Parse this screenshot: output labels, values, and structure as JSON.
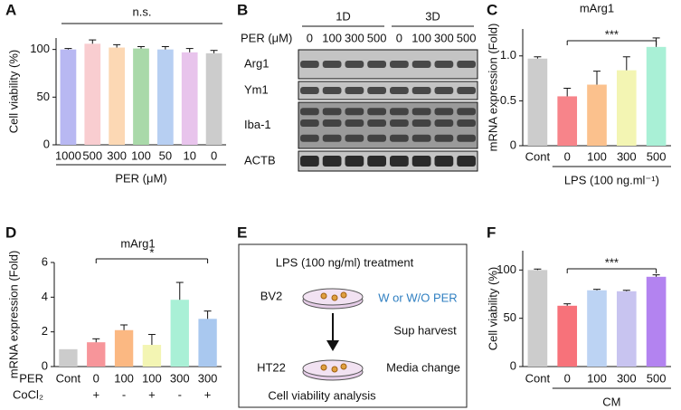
{
  "chart_data": [
    {
      "type": "bar",
      "panel": "A",
      "ylabel": "Cell viability (%)",
      "xlabel": "PER (μM)",
      "annotation": "n.s.",
      "categories": [
        "1000",
        "500",
        "300",
        "100",
        "50",
        "10",
        "0"
      ],
      "values": [
        100,
        106,
        102,
        101,
        100,
        97,
        96
      ],
      "errors": [
        1,
        4,
        3,
        2,
        3,
        4,
        3
      ],
      "colors": [
        "#b8b8f2",
        "#f9cdd0",
        "#fcd8b4",
        "#a9d9a9",
        "#b7cff2",
        "#e8c4ec",
        "#cccccc"
      ],
      "ylim": [
        0,
        112
      ],
      "yticks": [
        0,
        50,
        100
      ]
    },
    {
      "type": "bar",
      "panel": "C",
      "title": "mArg1",
      "ylabel": "mRNA expression (Fold)",
      "xlabel": "LPS (100 ng.ml⁻¹)",
      "annotation": "***",
      "categories": [
        "Cont",
        "0",
        "100",
        "300",
        "500"
      ],
      "values": [
        0.97,
        0.55,
        0.68,
        0.84,
        1.1
      ],
      "errors": [
        0.02,
        0.09,
        0.15,
        0.15,
        0.1
      ],
      "colors": [
        "#cccccc",
        "#f7848a",
        "#fbc18d",
        "#f3f5b3",
        "#a9f0d6"
      ],
      "ylim": [
        0,
        1.3
      ],
      "yticks": [
        0,
        0.5,
        {
          "value": 1,
          "label": "1.0"
        }
      ]
    },
    {
      "type": "bar",
      "panel": "D",
      "title": "mArg1",
      "ylabel": "mRNA expression (Fold)",
      "annotation": "*",
      "row_labels": [
        "PER",
        "CoCl₂"
      ],
      "categories": [
        "Cont",
        "0",
        "100",
        "100",
        "300",
        "300"
      ],
      "categories2": [
        null,
        "+",
        "-",
        "+",
        "-",
        "+"
      ],
      "values": [
        1,
        1.4,
        2.1,
        1.25,
        3.85,
        2.75
      ],
      "errors": [
        null,
        0.2,
        0.3,
        0.6,
        1.0,
        0.45
      ],
      "colors": [
        "#cccccc",
        "#f7959a",
        "#fbb882",
        "#f3f5b3",
        "#a9f0d6",
        "#a9c8ef"
      ],
      "ylim": [
        0,
        6
      ],
      "yticks": [
        0,
        2,
        4,
        6
      ]
    },
    {
      "type": "bar",
      "panel": "F",
      "ylabel": "Cell viability (%)",
      "xlabel": "CM",
      "annotation": "***",
      "categories": [
        "Cont",
        "0",
        "100",
        "300",
        "500"
      ],
      "values": [
        100,
        63,
        79,
        78,
        93
      ],
      "errors": [
        1,
        2,
        1,
        1,
        2
      ],
      "colors": [
        "#cccccc",
        "#f7727a",
        "#bcd3f3",
        "#c8c4f0",
        "#b383f0"
      ],
      "ylim": [
        0,
        120
      ],
      "yticks": [
        0,
        50,
        100
      ]
    }
  ],
  "blot": {
    "panel": "B",
    "groups": [
      "1D",
      "3D"
    ],
    "row_label": "PER (μM)",
    "lanes": [
      "0",
      "100",
      "300",
      "500",
      "0",
      "100",
      "300",
      "500"
    ],
    "proteins": [
      "Arg1",
      "Ym1",
      "Iba-1",
      "ACTB"
    ]
  },
  "schematic": {
    "panel": "E",
    "title": "LPS (100 ng/ml) treatment",
    "cells": [
      "BV2",
      "HT22"
    ],
    "treatment": "W or W/O PER",
    "steps": [
      "Sup harvest",
      "Media change"
    ],
    "footer": "Cell viability analysis"
  }
}
